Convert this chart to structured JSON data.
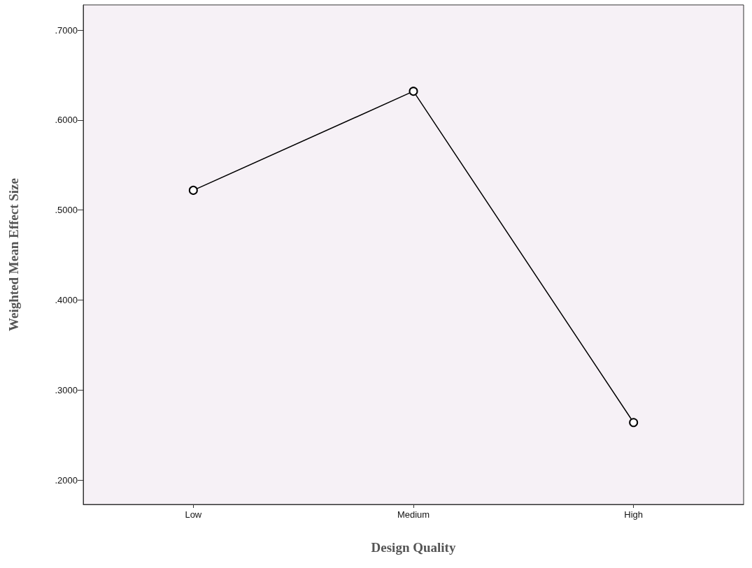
{
  "chart_data": {
    "type": "line",
    "xlabel": "Design Quality",
    "ylabel": "Weighted Mean Effect Size",
    "categories": [
      "Low",
      "Medium",
      "High"
    ],
    "series": [
      {
        "color": "#000000",
        "values": [
          0.522,
          0.632,
          0.264
        ]
      }
    ],
    "ylim": [
      0.173,
      0.728
    ],
    "yticks": [
      {
        "value": 0.2,
        "label": ".2000"
      },
      {
        "value": 0.3,
        "label": ".3000"
      },
      {
        "value": 0.4,
        "label": ".4000"
      },
      {
        "value": 0.5,
        "label": ".5000"
      },
      {
        "value": 0.6,
        "label": ".6000"
      },
      {
        "value": 0.7,
        "label": ".7000"
      }
    ],
    "marker": "circle",
    "line_style": "solid",
    "grid": false
  }
}
